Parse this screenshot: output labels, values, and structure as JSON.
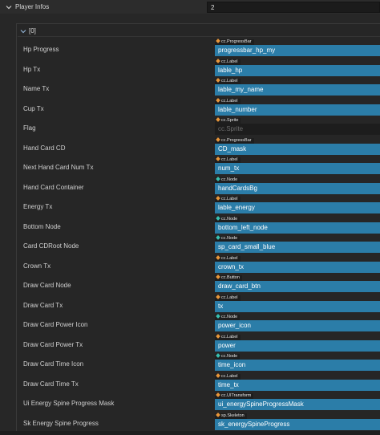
{
  "header": {
    "title": "Player Infos",
    "count": "2"
  },
  "item": {
    "label": "[0]"
  },
  "colors": {
    "ref_fill": "#2b7da8",
    "label_orange": "#e8963a",
    "node_teal": "#39c0b0"
  },
  "properties": [
    {
      "label": "Hp Progress",
      "type": "cc.ProgressBar",
      "value": "progressbar_hp_my",
      "icon": "label-orange-diamond-icon",
      "filled": true
    },
    {
      "label": "Hp Tx",
      "type": "cc.Label",
      "value": "lable_hp",
      "icon": "label-orange-diamond-icon",
      "filled": true
    },
    {
      "label": "Name Tx",
      "type": "cc.Label",
      "value": "lable_my_name",
      "icon": "label-orange-diamond-icon",
      "filled": true
    },
    {
      "label": "Cup Tx",
      "type": "cc.Label",
      "value": "lable_number",
      "icon": "label-orange-diamond-icon",
      "filled": true
    },
    {
      "label": "Flag",
      "type": "cc.Sprite",
      "value": "cc.Sprite",
      "icon": "label-orange-diamond-icon",
      "filled": false
    },
    {
      "label": "Hand Card CD",
      "type": "cc.ProgressBar",
      "value": "CD_mask",
      "icon": "label-orange-diamond-icon",
      "filled": true
    },
    {
      "label": "Next Hand Card Num Tx",
      "type": "cc.Label",
      "value": "num_tx",
      "icon": "label-orange-diamond-icon",
      "filled": true
    },
    {
      "label": "Hand Card Container",
      "type": "cc.Node",
      "value": "handCardsBg",
      "icon": "node-teal-diamond-icon",
      "filled": true
    },
    {
      "label": "Energy Tx",
      "type": "cc.Label",
      "value": "lable_energy",
      "icon": "label-orange-diamond-icon",
      "filled": true
    },
    {
      "label": "Bottom Node",
      "type": "cc.Node",
      "value": "bottom_left_node",
      "icon": "node-teal-diamond-icon",
      "filled": true
    },
    {
      "label": "Card CDRoot Node",
      "type": "cc.Node",
      "value": "sp_card_small_blue",
      "icon": "node-teal-diamond-icon",
      "filled": true
    },
    {
      "label": "Crown Tx",
      "type": "cc.Label",
      "value": "crown_tx",
      "icon": "label-orange-diamond-icon",
      "filled": true
    },
    {
      "label": "Draw Card Node",
      "type": "cc.Button",
      "value": "draw_card_btn",
      "icon": "label-orange-diamond-icon",
      "filled": true
    },
    {
      "label": "Draw Card Tx",
      "type": "cc.Label",
      "value": "tx",
      "icon": "label-orange-diamond-icon",
      "filled": true
    },
    {
      "label": "Draw Card Power Icon",
      "type": "cc.Node",
      "value": "power_icon",
      "icon": "node-teal-diamond-icon",
      "filled": true
    },
    {
      "label": "Draw Card Power Tx",
      "type": "cc.Label",
      "value": "power",
      "icon": "label-orange-diamond-icon",
      "filled": true
    },
    {
      "label": "Draw Card Time Icon",
      "type": "cc.Node",
      "value": "time_icon",
      "icon": "node-teal-diamond-icon",
      "filled": true
    },
    {
      "label": "Draw Card Time Tx",
      "type": "cc.Label",
      "value": "time_tx",
      "icon": "label-orange-diamond-icon",
      "filled": true
    },
    {
      "label": "Ui Energy Spine Progress Mask",
      "type": "cc.UITransform",
      "value": "ui_energySpineProgressMask",
      "icon": "label-orange-diamond-icon",
      "filled": true
    },
    {
      "label": "Sk Energy Spine Progress",
      "type": "sp.Skeleton",
      "value": "sk_energySpineProgress",
      "icon": "label-orange-diamond-icon",
      "filled": true
    }
  ]
}
